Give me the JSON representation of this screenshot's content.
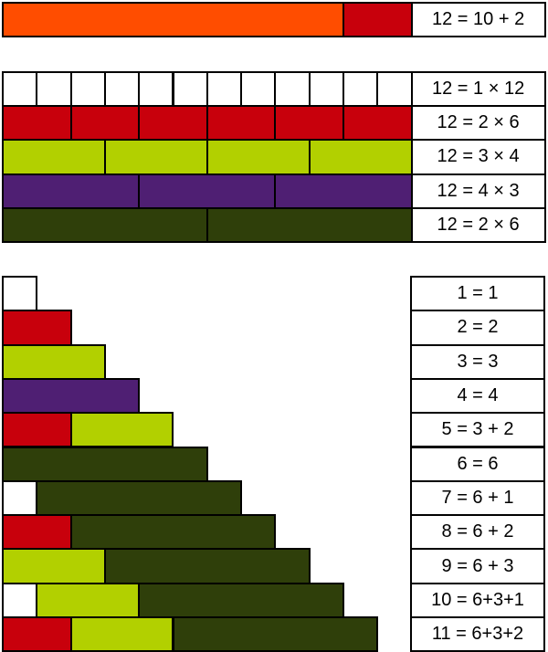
{
  "colors": {
    "1": "#ffffff",
    "2": "#c8000c",
    "3": "#b2d000",
    "4": "#4f1f73",
    "6": "#2f3f0a",
    "10": "#ff4d00"
  },
  "top": {
    "parts": [
      10,
      2
    ],
    "label": "12 = 10 + 2"
  },
  "factor_rows": [
    {
      "part": 1,
      "count": 12,
      "label": "12 = 1 × 12"
    },
    {
      "part": 2,
      "count": 6,
      "label": "12 = 2 × 6"
    },
    {
      "part": 3,
      "count": 4,
      "label": "12 = 3 × 4"
    },
    {
      "part": 4,
      "count": 3,
      "label": "12 = 4 × 3"
    },
    {
      "part": 6,
      "count": 2,
      "label": "12 = 2 × 6"
    }
  ],
  "staircase": [
    {
      "parts": [
        1
      ],
      "label": "1 = 1"
    },
    {
      "parts": [
        2
      ],
      "label": "2 = 2"
    },
    {
      "parts": [
        3
      ],
      "label": "3 = 3"
    },
    {
      "parts": [
        4
      ],
      "label": "4 = 4"
    },
    {
      "parts": [
        2,
        3
      ],
      "label": "5 = 3 + 2"
    },
    {
      "parts": [
        6
      ],
      "label": "6 = 6"
    },
    {
      "parts": [
        1,
        6
      ],
      "label": "7 = 6 + 1"
    },
    {
      "parts": [
        2,
        6
      ],
      "label": "8 = 6 + 2"
    },
    {
      "parts": [
        3,
        6
      ],
      "label": "9 = 6 + 3"
    },
    {
      "parts": [
        1,
        3,
        6
      ],
      "label": "10 = 6+3+1"
    },
    {
      "parts": [
        2,
        3,
        6
      ],
      "label": "11 = 6+3+2"
    }
  ]
}
